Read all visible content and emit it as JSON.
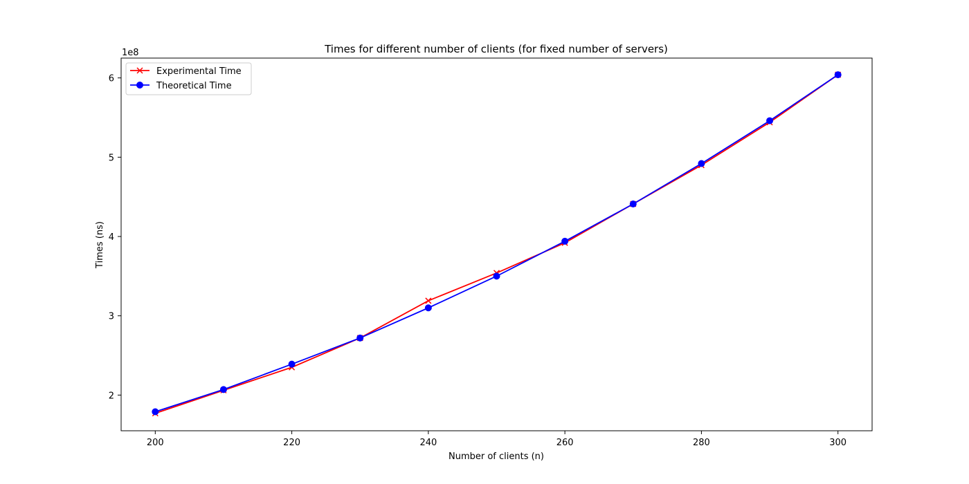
{
  "chart_data": {
    "type": "line",
    "title": "Times for different number of clients (for fixed number of servers)",
    "xlabel": "Number of clients (n)",
    "ylabel": "Times (ns)",
    "y_offset_label": "1e8",
    "xlim": [
      195,
      305
    ],
    "ylim": [
      1.55,
      6.25
    ],
    "x_ticks": [
      200,
      220,
      240,
      260,
      280,
      300
    ],
    "y_ticks": [
      2,
      3,
      4,
      5,
      6
    ],
    "y_scale_note": "values in units of 1e8 ns",
    "grid": false,
    "legend_position": "top-left",
    "x": [
      200,
      210,
      220,
      230,
      240,
      250,
      260,
      270,
      280,
      290,
      300
    ],
    "series": [
      {
        "name": "Experimental Time",
        "color": "#ff0000",
        "marker": "x",
        "values": [
          1.77,
          2.06,
          2.35,
          2.72,
          3.19,
          3.54,
          3.92,
          4.41,
          4.9,
          5.44,
          6.04
        ]
      },
      {
        "name": "Theoretical Time",
        "color": "#0000ff",
        "marker": "o",
        "values": [
          1.79,
          2.07,
          2.39,
          2.72,
          3.1,
          3.5,
          3.94,
          4.41,
          4.92,
          5.46,
          6.04
        ]
      }
    ]
  }
}
